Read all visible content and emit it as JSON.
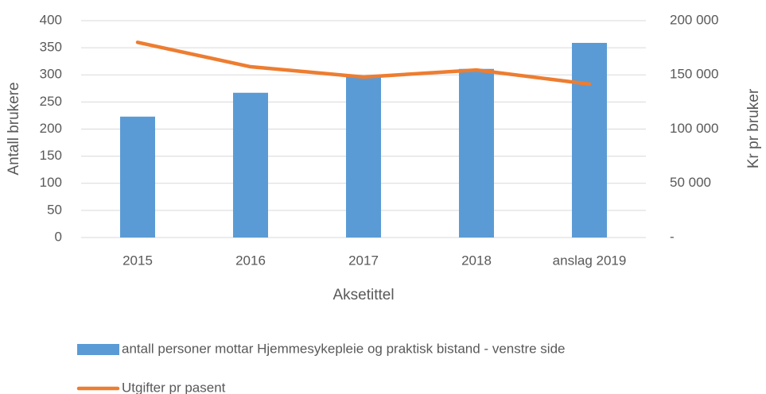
{
  "chart_data": {
    "type": "bar_line",
    "x_label": "Aksetittel",
    "y_label": "Antall brukere",
    "y2_label": "Kr pr bruker",
    "categories": [
      "2015",
      "2016",
      "2017",
      "2018",
      "anslag 2019"
    ],
    "series": [
      {
        "name": "antall personer mottar Hjemmesykepleie og praktisk bistand - venstre side",
        "type": "bar",
        "color": "#5b9bd5",
        "values": [
          223,
          267,
          297,
          311,
          359
        ]
      },
      {
        "name": "Utgifter pr pasent",
        "type": "line",
        "color": "#ed7d31",
        "axis": "y2",
        "values": [
          180000,
          157500,
          148000,
          154500,
          141500
        ]
      }
    ],
    "ylim": [
      0,
      400
    ],
    "yticks": [
      0,
      50,
      100,
      150,
      200,
      250,
      300,
      350,
      400
    ],
    "y2lim": [
      0,
      200000
    ],
    "y2ticks": [
      {
        "value": 0,
        "label": "-"
      },
      {
        "value": 50000,
        "label": "50 000"
      },
      {
        "value": 100000,
        "label": "100 000"
      },
      {
        "value": 150000,
        "label": "150 000"
      },
      {
        "value": 200000,
        "label": "200 000"
      }
    ],
    "grid": true,
    "legend": "bottom"
  }
}
